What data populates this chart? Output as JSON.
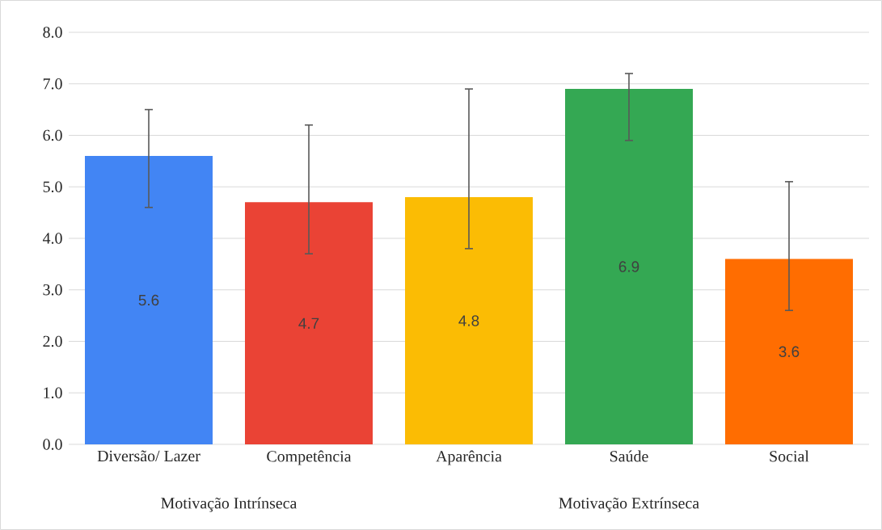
{
  "chart_data": {
    "type": "bar",
    "categories": [
      "Diversão/ Lazer",
      "Competência",
      "Aparência",
      "Saúde",
      "Social"
    ],
    "values": [
      5.6,
      4.7,
      4.8,
      6.9,
      3.6
    ],
    "colors": [
      "#4285f4",
      "#ea4335",
      "#fbbc04",
      "#34a853",
      "#ff6d01"
    ],
    "errors": [
      [
        4.6,
        6.5
      ],
      [
        3.7,
        6.2
      ],
      [
        3.8,
        6.9
      ],
      [
        5.9,
        7.2
      ],
      [
        2.6,
        5.1
      ]
    ],
    "value_labels": [
      "5.6",
      "4.7",
      "4.8",
      "6.9",
      "3.6"
    ],
    "ylim": [
      0,
      8
    ],
    "yticks": [
      {
        "value": 0,
        "label": "0.0"
      },
      {
        "value": 1,
        "label": "1.0"
      },
      {
        "value": 2,
        "label": "2.0"
      },
      {
        "value": 3,
        "label": "3.0"
      },
      {
        "value": 4,
        "label": "4.0"
      },
      {
        "value": 5,
        "label": "5.0"
      },
      {
        "value": 6,
        "label": "6.0"
      },
      {
        "value": 7,
        "label": "7.0"
      },
      {
        "value": 8,
        "label": "8.0"
      }
    ],
    "grid": "y",
    "annotations": [
      "Motivação Intrínseca",
      "Motivação Extrínseca"
    ]
  }
}
